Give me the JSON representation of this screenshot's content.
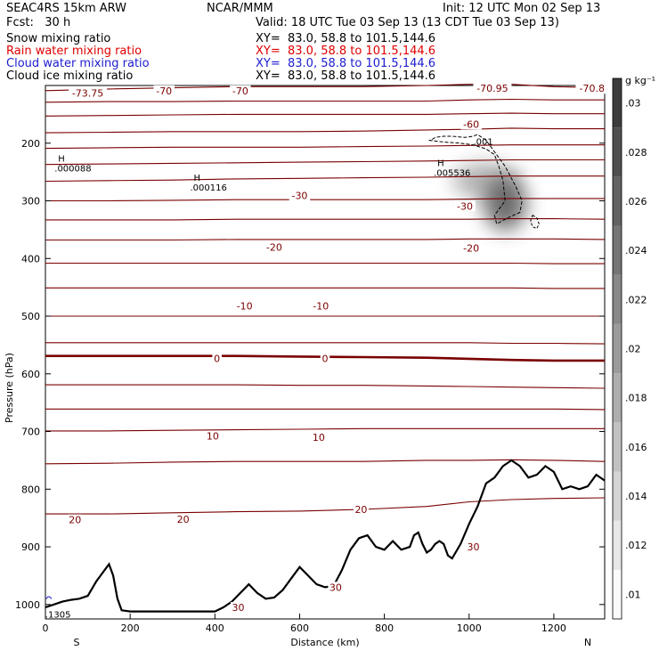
{
  "header": {
    "left_title": "SEAC4RS 15km ARW",
    "center_title": "NCAR/MMM",
    "init": "Init: 12 UTC Mon 02 Sep 13",
    "fcst": "Fcst:   30 h",
    "valid": "Valid: 18 UTC Tue 03 Sep 13 (13 CDT Tue 03 Sep 13)",
    "fields": [
      {
        "name": "Snow mixing ratio",
        "xy": "XY=  83.0, 58.8 to 101.5,144.6",
        "color": "#000000"
      },
      {
        "name": "Rain water mixing ratio",
        "xy": "XY=  83.0, 58.8 to 101.5,144.6",
        "color": "#e00000"
      },
      {
        "name": "Cloud water mixing ratio",
        "xy": "XY=  83.0, 58.8 to 101.5,144.6",
        "color": "#1c1cd0"
      },
      {
        "name": "Cloud ice mixing ratio",
        "xy": "XY=  83.0, 58.8 to 101.5,144.6",
        "color": "#000000"
      }
    ]
  },
  "chart_data": {
    "type": "heatmap",
    "xlabel": "Distance (km)",
    "ylabel": "Pressure (hPa)",
    "xlim": [
      0,
      1320
    ],
    "ylim": [
      1025,
      100
    ],
    "x_ticks": [
      0,
      200,
      400,
      600,
      800,
      1000,
      1200
    ],
    "y_ticks": [
      200,
      300,
      400,
      500,
      600,
      700,
      800,
      900,
      1000
    ],
    "x_end_labels": {
      "left": "S",
      "right": "N"
    },
    "colorbar": {
      "unit": "g kg⁻¹",
      "levels": [
        0.01,
        0.012,
        0.014,
        0.016,
        0.018,
        0.02,
        0.022,
        0.024,
        0.026,
        0.028,
        0.03
      ],
      "tick_labels": [
        ".01",
        ".012",
        ".014",
        ".016",
        ".018",
        ".02",
        ".022",
        ".024",
        ".026",
        ".028",
        ".03"
      ]
    },
    "temperature_contours": {
      "color": "#7a0000",
      "zero_line_emphasized": true,
      "lines": [
        {
          "p": [
            109,
            106,
            104,
            102,
            102,
            102,
            100,
            98,
            98,
            102,
            104
          ],
          "x": [
            0,
            150,
            300,
            450,
            600,
            750,
            900,
            1000,
            1100,
            1200,
            1320
          ]
        },
        {
          "p": [
            129,
            128,
            128,
            127,
            127,
            127,
            127,
            125,
            124,
            125,
            125
          ],
          "x": [
            0,
            150,
            300,
            450,
            600,
            750,
            900,
            1000,
            1100,
            1200,
            1320
          ]
        },
        {
          "p": [
            153,
            152,
            151,
            150,
            150,
            150,
            150,
            149,
            148,
            149,
            149
          ],
          "x": [
            0,
            150,
            300,
            450,
            600,
            750,
            900,
            1000,
            1100,
            1200,
            1320
          ]
        },
        {
          "p": [
            182,
            181,
            180,
            180,
            180,
            179,
            177,
            176,
            174,
            175,
            175
          ],
          "x": [
            0,
            150,
            300,
            450,
            600,
            750,
            900,
            1000,
            1100,
            1200,
            1320
          ]
        },
        {
          "p": [
            209,
            208,
            207,
            207,
            207,
            206,
            205,
            204,
            203,
            203,
            203
          ],
          "x": [
            0,
            150,
            300,
            450,
            600,
            750,
            900,
            1000,
            1100,
            1200,
            1320
          ]
        },
        {
          "p": [
            237,
            236,
            235,
            234,
            233,
            232,
            231,
            230,
            229,
            229,
            229
          ],
          "x": [
            0,
            150,
            300,
            450,
            600,
            750,
            900,
            1000,
            1100,
            1200,
            1320
          ]
        },
        {
          "p": [
            266,
            265,
            264,
            262,
            261,
            260,
            259,
            258,
            257,
            257,
            257
          ],
          "x": [
            0,
            150,
            300,
            450,
            600,
            750,
            900,
            1000,
            1100,
            1200,
            1320
          ]
        },
        {
          "p": [
            300,
            300,
            299,
            298,
            298,
            298,
            298,
            297,
            296,
            296,
            296
          ],
          "x": [
            0,
            150,
            300,
            450,
            600,
            750,
            900,
            1000,
            1100,
            1200,
            1320
          ]
        },
        {
          "p": [
            333,
            333,
            333,
            332,
            332,
            332,
            332,
            332,
            331,
            331,
            332
          ],
          "x": [
            0,
            150,
            300,
            450,
            600,
            750,
            900,
            1000,
            1100,
            1200,
            1320
          ]
        },
        {
          "p": [
            368,
            368,
            368,
            367,
            367,
            367,
            367,
            366,
            366,
            366,
            367
          ],
          "x": [
            0,
            150,
            300,
            450,
            600,
            750,
            900,
            1000,
            1100,
            1200,
            1320
          ]
        },
        {
          "p": [
            408,
            408,
            408,
            408,
            408,
            408,
            408,
            408,
            408,
            409,
            409
          ],
          "x": [
            0,
            150,
            300,
            450,
            600,
            750,
            900,
            1000,
            1100,
            1200,
            1320
          ]
        },
        {
          "p": [
            451,
            451,
            451,
            451,
            451,
            451,
            451,
            451,
            451,
            452,
            452
          ],
          "x": [
            0,
            150,
            300,
            450,
            600,
            750,
            900,
            1000,
            1100,
            1200,
            1320
          ]
        },
        {
          "p": [
            500,
            500,
            500,
            500,
            500,
            500,
            500,
            500,
            500,
            500,
            500
          ],
          "x": [
            0,
            150,
            300,
            450,
            600,
            750,
            900,
            1000,
            1100,
            1200,
            1320
          ]
        },
        {
          "p": [
            546,
            546,
            546,
            546,
            546,
            546,
            546,
            546,
            547,
            547,
            548
          ],
          "x": [
            0,
            150,
            300,
            450,
            600,
            750,
            900,
            1000,
            1100,
            1200,
            1320
          ]
        },
        {
          "p": [
            569,
            569,
            569,
            569,
            570,
            571,
            572,
            574,
            576,
            577,
            577
          ],
          "x": [
            0,
            150,
            300,
            450,
            600,
            750,
            900,
            1000,
            1100,
            1200,
            1320
          ],
          "zero": true
        },
        {
          "p": [
            619,
            619,
            619,
            619,
            620,
            620,
            621,
            622,
            623,
            624,
            625
          ],
          "x": [
            0,
            150,
            300,
            450,
            600,
            750,
            900,
            1000,
            1100,
            1200,
            1320
          ]
        },
        {
          "p": [
            661,
            661,
            661,
            661,
            661,
            661,
            661,
            661,
            661,
            661,
            662
          ],
          "x": [
            0,
            150,
            300,
            450,
            600,
            750,
            900,
            1000,
            1100,
            1200,
            1320
          ]
        },
        {
          "p": [
            699,
            699,
            698,
            697,
            696,
            695,
            695,
            695,
            695,
            695,
            695
          ],
          "x": [
            0,
            150,
            300,
            450,
            600,
            750,
            900,
            1000,
            1100,
            1200,
            1320
          ]
        },
        {
          "p": [
            756,
            755,
            753,
            752,
            752,
            752,
            750,
            750,
            749,
            750,
            752
          ],
          "x": [
            0,
            150,
            300,
            450,
            600,
            750,
            900,
            1000,
            1100,
            1200,
            1320
          ]
        },
        {
          "p": [
            843,
            843,
            841,
            839,
            838,
            835,
            830,
            822,
            818,
            816,
            815
          ],
          "x": [
            0,
            150,
            300,
            450,
            600,
            750,
            900,
            1000,
            1100,
            1200,
            1320
          ]
        }
      ],
      "labels": [
        {
          "text": "-73.75",
          "x": 100,
          "p": 113
        },
        {
          "text": "-70",
          "x": 280,
          "p": 109
        },
        {
          "text": "-70",
          "x": 460,
          "p": 109
        },
        {
          "text": "-70.95",
          "x": 1055,
          "p": 105
        },
        {
          "text": "-70.8",
          "x": 1290,
          "p": 105
        },
        {
          "text": "-60",
          "x": 1005,
          "p": 167
        },
        {
          "text": "-30",
          "x": 600,
          "p": 291
        },
        {
          "text": "-30",
          "x": 990,
          "p": 309
        },
        {
          "text": "-20",
          "x": 540,
          "p": 380
        },
        {
          "text": "-20",
          "x": 1005,
          "p": 382
        },
        {
          "text": "-10",
          "x": 470,
          "p": 482
        },
        {
          "text": "-10",
          "x": 650,
          "p": 482
        },
        {
          "text": "0",
          "x": 405,
          "p": 573
        },
        {
          "text": "0",
          "x": 660,
          "p": 573
        },
        {
          "text": "10",
          "x": 395,
          "p": 708
        },
        {
          "text": "10",
          "x": 645,
          "p": 710
        },
        {
          "text": "20",
          "x": 70,
          "p": 853
        },
        {
          "text": "20",
          "x": 325,
          "p": 852
        },
        {
          "text": "20",
          "x": 745,
          "p": 835
        },
        {
          "text": "30",
          "x": 1010,
          "p": 900
        },
        {
          "text": "30",
          "x": 685,
          "p": 970
        },
        {
          "text": "30",
          "x": 455,
          "p": 1005
        }
      ]
    },
    "terrain": {
      "x": [
        0,
        20,
        40,
        60,
        80,
        100,
        120,
        140,
        150,
        160,
        170,
        180,
        200,
        240,
        300,
        360,
        400,
        420,
        440,
        460,
        480,
        500,
        520,
        540,
        560,
        580,
        600,
        620,
        640,
        660,
        680,
        700,
        720,
        740,
        760,
        780,
        800,
        820,
        840,
        860,
        870,
        880,
        890,
        900,
        910,
        920,
        930,
        940,
        950,
        960,
        980,
        1000,
        1020,
        1040,
        1060,
        1080,
        1100,
        1120,
        1140,
        1160,
        1180,
        1200,
        1220,
        1240,
        1260,
        1280,
        1300,
        1320
      ],
      "p": [
        1005,
        1000,
        995,
        992,
        990,
        985,
        960,
        940,
        930,
        950,
        990,
        1010,
        1012,
        1012,
        1012,
        1012,
        1012,
        1005,
        995,
        980,
        965,
        980,
        990,
        988,
        975,
        955,
        935,
        950,
        965,
        970,
        968,
        940,
        905,
        885,
        880,
        900,
        905,
        890,
        905,
        900,
        880,
        875,
        895,
        910,
        905,
        895,
        890,
        895,
        915,
        920,
        895,
        860,
        830,
        790,
        780,
        760,
        750,
        760,
        780,
        775,
        760,
        770,
        800,
        795,
        800,
        795,
        775,
        785
      ]
    },
    "snow_contour": {
      "label": ".001",
      "x": [
        905,
        940,
        980,
        1010,
        1040,
        1060,
        1070,
        1080,
        1085,
        1070,
        1060,
        1065,
        1090,
        1120,
        1125,
        1110,
        1085,
        1060,
        1040,
        1030,
        1020,
        1010,
        990,
        960,
        940,
        920,
        910,
        905
      ],
      "p": [
        195,
        198,
        200,
        203,
        210,
        220,
        240,
        265,
        300,
        315,
        325,
        340,
        330,
        320,
        300,
        275,
        240,
        215,
        195,
        190,
        185,
        188,
        190,
        188,
        188,
        190,
        195,
        195
      ]
    },
    "snow_contour_small": {
      "x": [
        1150,
        1160,
        1165,
        1160,
        1150,
        1145,
        1150
      ],
      "p": [
        325,
        330,
        340,
        348,
        345,
        335,
        325
      ]
    },
    "shaded_core": {
      "x": 1085,
      "p": 305,
      "max_value": 0.03
    },
    "shaded_secondary": {
      "x": 1040,
      "p": 265
    },
    "extrema": [
      {
        "type": "H",
        "value": ".000088",
        "x": 30,
        "p": 232
      },
      {
        "type": "H",
        "value": ".000116",
        "x": 350,
        "p": 265
      },
      {
        "type": "H",
        "value": ".005536",
        "x": 925,
        "p": 240
      }
    ],
    "cloud_water_marks": [
      {
        "value": ".1305",
        "x": 8,
        "p": 1018
      }
    ]
  }
}
